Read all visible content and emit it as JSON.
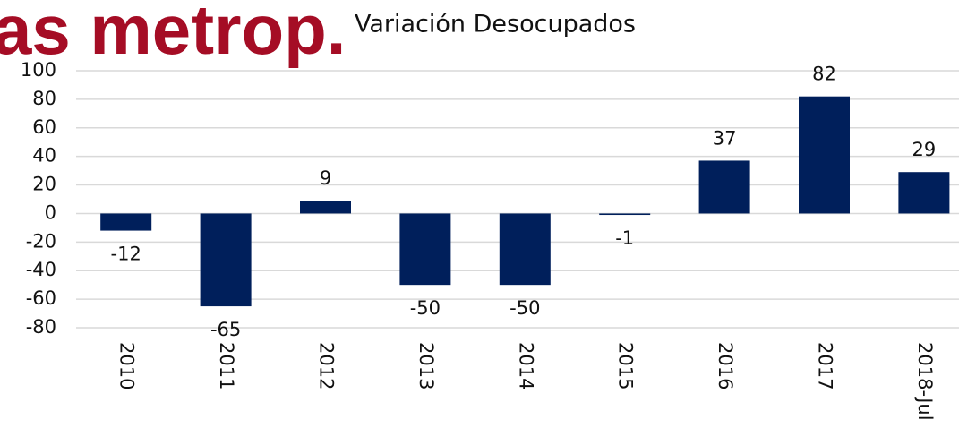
{
  "overlay_text": "as metrop.",
  "chart_data": {
    "type": "bar",
    "title": "Variación Desocupados",
    "categories": [
      "2010",
      "2011",
      "2012",
      "2013",
      "2014",
      "2015",
      "2016",
      "2017",
      "2018-Jul"
    ],
    "values": [
      -12,
      -65,
      9,
      -50,
      -50,
      -1,
      37,
      82,
      29
    ],
    "color": "#001f5b",
    "ylim": [
      -80,
      100
    ],
    "yticks": [
      -80,
      -60,
      -40,
      -20,
      0,
      20,
      40,
      60,
      80,
      100
    ],
    "grid": true
  }
}
